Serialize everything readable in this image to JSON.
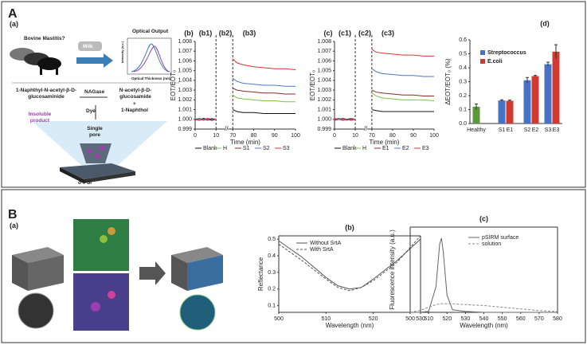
{
  "labels": {
    "A": "A",
    "B": "B"
  },
  "panel_A_a": {
    "label": "(a)",
    "question": "Bovine Mastitis?",
    "milk": "Milk",
    "optical_output": "Optical Output",
    "inset_ylabel": "Intensity (a.u.)",
    "inset_xlabel": "Optical Thickness (nm)",
    "substrate": "1-Naphthyl-N-acetyl-β-D-glucosaminide",
    "enzyme": "NAGase",
    "product": "N-acetyl-β-D-glucosamide",
    "plus": "+",
    "naphthol": "1-Naphthol",
    "dye": "Dye",
    "insoluble": "Insoluble product",
    "pore": "Single pore",
    "material": "σ-PSi"
  },
  "panel_B_a": {
    "label": "(a)"
  },
  "chart_data": [
    {
      "type": "line",
      "title": "(b)",
      "annotations": [
        "(b1)",
        "(b2)",
        "(b3)"
      ],
      "xlabel": "Time (min)",
      "ylabel": "EOT/EOT₀",
      "x": [
        0,
        2,
        4,
        6,
        8,
        10,
        12,
        70,
        72,
        75,
        80,
        85,
        90,
        95,
        100
      ],
      "xlim": [
        0,
        100
      ],
      "xbreak": [
        15,
        67
      ],
      "xticks": [
        0,
        10,
        70,
        80,
        90,
        100
      ],
      "vlines": [
        10,
        70
      ],
      "ylim": [
        0.999,
        1.008
      ],
      "yticks": [
        0.999,
        {
          "value": 1,
          "label": "1.000"
        },
        1.001,
        1.002,
        1.003,
        1.004,
        1.005,
        1.006,
        1.007,
        1.008
      ],
      "series": [
        {
          "name": "Blank",
          "color": "#111111",
          "values": [
            1.0,
            0.9999,
            1.0001,
            1.0,
            0.9999,
            1.0,
            null,
            1.001,
            1.0008,
            1.0007,
            1.0007,
            1.0006,
            1.0006,
            1.0006,
            1.0006
          ]
        },
        {
          "name": "H",
          "color": "#7cc242",
          "values": [
            1.0001,
            1.0,
            0.9999,
            1.0001,
            1.0,
            1.0,
            null,
            1.0025,
            1.0022,
            1.0021,
            1.002,
            1.0019,
            1.0019,
            1.0018,
            1.0018
          ]
        },
        {
          "name": "S1",
          "color": "#8b2a2a",
          "values": [
            0.9999,
            1.0001,
            1.0,
            0.9999,
            1.0001,
            1.0,
            null,
            1.0032,
            1.003,
            1.0029,
            1.0028,
            1.0027,
            1.0027,
            1.0026,
            1.0026
          ]
        },
        {
          "name": "S2",
          "color": "#4a78d0",
          "values": [
            1.0,
            1.0001,
            0.9999,
            1.0,
            1.0001,
            1.0,
            null,
            1.0042,
            1.0039,
            1.0037,
            1.0036,
            1.0035,
            1.0035,
            1.0034,
            1.0034
          ]
        },
        {
          "name": "S3",
          "color": "#e03030",
          "values": [
            1.0,
            0.9999,
            1.0,
            1.0001,
            1.0,
            1.0,
            null,
            1.0062,
            1.0058,
            1.0056,
            1.0054,
            1.0053,
            1.0052,
            1.0052,
            1.0051
          ]
        }
      ]
    },
    {
      "type": "line",
      "title": "(c)",
      "annotations": [
        "(c1)",
        "(c2)",
        "(c3)"
      ],
      "xlabel": "Time (min)",
      "ylabel": "EOT/EOT₀",
      "x": [
        0,
        2,
        4,
        6,
        8,
        10,
        12,
        70,
        72,
        75,
        80,
        85,
        90,
        95,
        100
      ],
      "xlim": [
        0,
        100
      ],
      "xbreak": [
        15,
        67
      ],
      "xticks": [
        0,
        10,
        70,
        80,
        90,
        100
      ],
      "vlines": [
        10,
        70
      ],
      "ylim": [
        0.999,
        1.008
      ],
      "yticks": [
        0.999,
        {
          "value": 1,
          "label": "1.000"
        },
        1.001,
        1.002,
        1.003,
        1.004,
        1.005,
        1.006,
        1.007,
        1.008
      ],
      "series": [
        {
          "name": "Blank",
          "color": "#111111",
          "values": [
            1.0,
            1.0001,
            0.9999,
            1.0,
            1.0001,
            1.0,
            null,
            1.001,
            1.0009,
            1.0008,
            1.0008,
            1.0008,
            1.0008,
            1.0008,
            1.0008
          ]
        },
        {
          "name": "H",
          "color": "#7cc242",
          "values": [
            1.0001,
            1.0,
            1.0001,
            0.9999,
            1.0,
            1.0,
            null,
            1.0027,
            1.0024,
            1.0022,
            1.0021,
            1.002,
            1.002,
            1.002,
            1.0019
          ]
        },
        {
          "name": "E1",
          "color": "#8b2a2a",
          "values": [
            0.9999,
            1.0,
            1.0001,
            1.0,
            0.9999,
            1.0,
            null,
            1.003,
            1.0028,
            1.0027,
            1.0026,
            1.0025,
            1.0025,
            1.0024,
            1.0024
          ]
        },
        {
          "name": "E2",
          "color": "#4a78d0",
          "values": [
            1.0,
            1.0001,
            1.0,
            0.9999,
            1.0001,
            1.0,
            null,
            1.0052,
            1.0049,
            1.0047,
            1.0046,
            1.0045,
            1.0045,
            1.0044,
            1.0044
          ]
        },
        {
          "name": "E3",
          "color": "#e03030",
          "values": [
            1.0001,
            1.0,
            0.9999,
            1.0,
            1.0,
            1.0,
            null,
            1.0072,
            1.0069,
            1.0068,
            1.0067,
            1.0066,
            1.0066,
            1.0065,
            1.0065
          ]
        }
      ]
    },
    {
      "type": "bar",
      "title": "(d)",
      "ylabel": "ΔEOT/EOT₀ (%)",
      "categories": [
        "Healthy",
        "S1",
        "E1",
        "S2",
        "E2",
        "S3",
        "E3"
      ],
      "values": [
        0.12,
        0.165,
        0.163,
        0.31,
        0.34,
        0.425,
        0.515
      ],
      "errors": [
        0.02,
        0.005,
        0.005,
        0.02,
        0.005,
        0.015,
        0.05
      ],
      "colors": [
        "#5a9a3a",
        "#4a72c4",
        "#d03a2f",
        "#4a72c4",
        "#d03a2f",
        "#4a72c4",
        "#d03a2f"
      ],
      "legend": [
        {
          "name": "Streptococcus",
          "color": "#4a72c4"
        },
        {
          "name": "E.coli",
          "color": "#d03a2f"
        }
      ],
      "ylim": [
        0,
        0.6
      ],
      "yticks": [
        {
          "value": 0,
          "label": "0.0"
        },
        0.1,
        0.2,
        0.3,
        0.4,
        0.5,
        0.6
      ]
    },
    {
      "type": "line",
      "title": "(b)",
      "xlabel": "Wavelength (nm)",
      "ylabel": "Reflectance",
      "x": [
        500,
        505,
        510,
        512.5,
        515,
        517.5,
        520,
        525,
        530
      ],
      "xlim": [
        500,
        530
      ],
      "xticks": [
        500,
        510,
        520,
        530
      ],
      "ylim": [
        0.06,
        0.52
      ],
      "yticks": [
        0.1,
        0.2,
        0.3,
        0.4,
        0.5
      ],
      "series": [
        {
          "name": "Without SrtA",
          "color": "#555555",
          "dash": false,
          "values": [
            0.49,
            0.39,
            0.27,
            0.22,
            0.2,
            0.21,
            0.26,
            0.37,
            0.5
          ]
        },
        {
          "name": "With SrtA",
          "color": "#555555",
          "dash": true,
          "values": [
            0.47,
            0.37,
            0.26,
            0.21,
            0.19,
            0.21,
            0.25,
            0.36,
            0.52
          ]
        }
      ]
    },
    {
      "type": "line",
      "title": "(c)",
      "xlabel": "Wavelength (nm)",
      "ylabel": "Fluorescence intensity (a.u.)",
      "x": [
        500,
        505,
        510,
        514,
        516,
        517,
        518,
        520,
        523,
        530,
        540,
        550,
        560,
        570,
        580
      ],
      "xlim": [
        500,
        580
      ],
      "xticks": [
        500,
        510,
        520,
        530,
        540,
        550,
        560,
        570,
        580
      ],
      "ylim": [
        0,
        1
      ],
      "series": [
        {
          "name": "pSIRM surface",
          "color": "#666666",
          "dash": false,
          "values": [
            0,
            0,
            0.01,
            0.3,
            0.8,
            0.87,
            0.7,
            0.2,
            0.03,
            0.01,
            0,
            0,
            0,
            0,
            0
          ]
        },
        {
          "name": "solution",
          "color": "#888888",
          "dash": true,
          "values": [
            0,
            0.02,
            0.06,
            0.09,
            0.1,
            0.1,
            0.1,
            0.1,
            0.1,
            0.09,
            0.08,
            0.06,
            0.04,
            0.02,
            0.01
          ]
        }
      ]
    }
  ]
}
